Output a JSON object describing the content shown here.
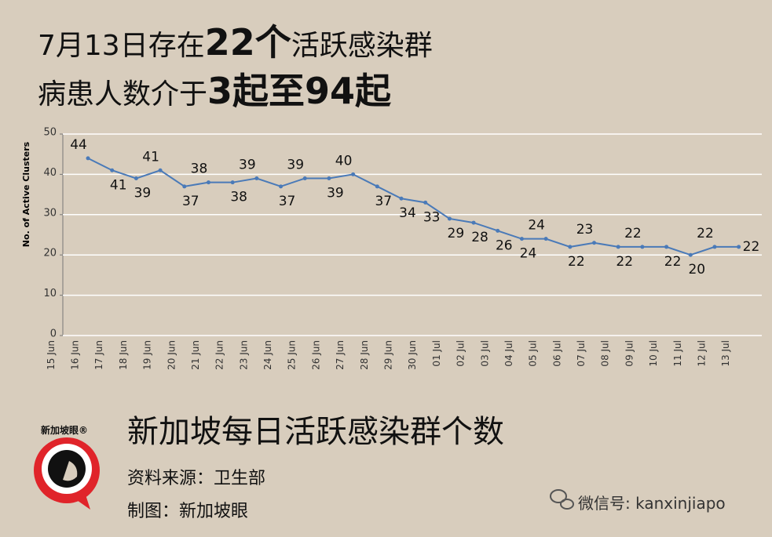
{
  "header": {
    "line1": [
      "7月13日存在",
      "22个",
      "活跃感染群"
    ],
    "line2": [
      "病患人数介于",
      "3起至94起"
    ]
  },
  "chart_data": {
    "type": "line",
    "y_label": "No. of Active Clusters",
    "categories": [
      "15 Jun",
      "16 Jun",
      "17 Jun",
      "18 Jun",
      "19 Jun",
      "20 Jun",
      "21 Jun",
      "22 Jun",
      "23 Jun",
      "24 Jun",
      "25 Jun",
      "26 Jun",
      "27 Jun",
      "28 Jun",
      "29 Jun",
      "30 Jun",
      "01 Jul",
      "02 Jul",
      "03 Jul",
      "04 Jul",
      "05 Jul",
      "06 Jul",
      "07 Jul",
      "08 Jul",
      "09 Jul",
      "10 Jul",
      "11 Jul",
      "12 Jul",
      "13 Jul"
    ],
    "series": [
      {
        "name": "No. of Active Clusters",
        "color": "#4a7ab8",
        "values": [
          null,
          44,
          41,
          39,
          41,
          37,
          38,
          38,
          39,
          37,
          39,
          39,
          40,
          37,
          34,
          33,
          29,
          28,
          26,
          24,
          24,
          22,
          23,
          22,
          22,
          22,
          20,
          22,
          22
        ]
      }
    ],
    "ylim": [
      0,
      50
    ],
    "yticks": [
      0,
      10,
      20,
      30,
      40,
      50
    ],
    "grid": true
  },
  "footer": {
    "title": "新加坡每日活跃感染群个数",
    "source": "资料来源：卫生部",
    "credit": "制图：新加坡眼",
    "logo": "新加坡眼®",
    "watermark": "微信号: kanxinjiapo"
  }
}
